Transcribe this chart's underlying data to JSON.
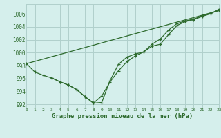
{
  "xlabel": "Graphe pression niveau de la mer (hPa)",
  "bg_color": "#d5efec",
  "grid_color": "#b0d0cc",
  "line_color": "#2d6a2d",
  "xlim": [
    0,
    23
  ],
  "ylim": [
    991.5,
    1007.5
  ],
  "xticks": [
    0,
    1,
    2,
    3,
    4,
    5,
    6,
    7,
    8,
    9,
    10,
    11,
    12,
    13,
    14,
    15,
    16,
    17,
    18,
    19,
    20,
    21,
    22,
    23
  ],
  "yticks": [
    992,
    994,
    996,
    998,
    1000,
    1002,
    1004,
    1006
  ],
  "line1_x": [
    0,
    1,
    2,
    3,
    4,
    5,
    6,
    7,
    8,
    9,
    10,
    11,
    12,
    13,
    14,
    15,
    16,
    17,
    18,
    19,
    20,
    21,
    22,
    23
  ],
  "line1_y": [
    998.3,
    997.0,
    996.5,
    996.1,
    995.5,
    995.0,
    994.3,
    993.2,
    992.2,
    992.3,
    995.7,
    998.2,
    999.3,
    999.8,
    1000.1,
    1001.3,
    1002.1,
    1003.5,
    1004.5,
    1004.9,
    1005.2,
    1005.7,
    1006.1,
    1006.5
  ],
  "line2_x": [
    3,
    4,
    5,
    6,
    7,
    8,
    9,
    10,
    11,
    12,
    13,
    14,
    15,
    16,
    17,
    18,
    19,
    20,
    21,
    22,
    23
  ],
  "line2_y": [
    996.1,
    995.5,
    995.0,
    994.3,
    993.2,
    992.2,
    993.3,
    995.5,
    997.2,
    998.6,
    999.5,
    1000.1,
    1001.0,
    1001.3,
    1002.8,
    1004.2,
    1004.8,
    1005.1,
    1005.6,
    1006.0,
    1006.7
  ],
  "line3_x": [
    0,
    23
  ],
  "line3_y": [
    998.3,
    1006.5
  ]
}
